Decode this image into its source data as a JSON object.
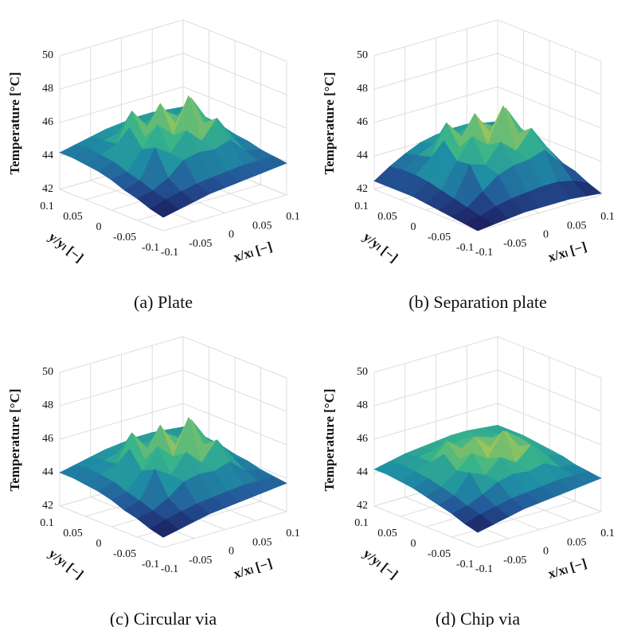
{
  "chart_data": [
    {
      "type": "surface",
      "caption": "(a) Plate",
      "zlabel": "Temperature [°C]",
      "xlabel": "x/xₗ [−]",
      "ylabel": "y/yₗ [−]",
      "x": [
        -0.1,
        -0.075,
        -0.05,
        -0.025,
        0,
        0.025,
        0.05,
        0.075,
        0.1
      ],
      "y": [
        -0.1,
        -0.075,
        -0.05,
        -0.025,
        0,
        0.025,
        0.05,
        0.075,
        0.1
      ],
      "z": [
        [
          42.8,
          43.0,
          43.2,
          43.4,
          43.5,
          43.6,
          43.7,
          43.8,
          43.9
        ],
        [
          43.0,
          43.3,
          43.5,
          43.7,
          43.8,
          43.9,
          44.0,
          44.0,
          44.0
        ],
        [
          43.3,
          43.5,
          44.0,
          44.8,
          45.0,
          44.9,
          45.2,
          44.3,
          44.1
        ],
        [
          43.5,
          43.8,
          45.5,
          44.9,
          46.0,
          45.1,
          46.2,
          44.8,
          44.3
        ],
        [
          43.8,
          44.0,
          45.1,
          46.3,
          45.4,
          47.5,
          45.6,
          45.0,
          44.4
        ],
        [
          44.0,
          44.3,
          46.1,
          45.2,
          47.0,
          45.5,
          46.8,
          45.3,
          44.6
        ],
        [
          44.1,
          44.4,
          44.8,
          46.5,
          45.3,
          46.0,
          45.4,
          44.9,
          44.7
        ],
        [
          44.2,
          44.5,
          44.7,
          44.9,
          45.0,
          45.1,
          45.0,
          44.9,
          44.8
        ],
        [
          44.2,
          44.4,
          44.6,
          44.8,
          44.9,
          45.0,
          45.0,
          44.9,
          44.8
        ]
      ],
      "xlim": [
        -0.1,
        0.1
      ],
      "ylim": [
        -0.1,
        0.1
      ],
      "zlim": [
        42,
        50
      ],
      "xticks": [
        -0.1,
        -0.05,
        0,
        0.05,
        0.1
      ],
      "yticks": [
        -0.1,
        -0.05,
        0,
        0.05,
        0.1
      ],
      "zticks": [
        42,
        44,
        46,
        48,
        50
      ],
      "grid": true,
      "colormap": [
        "#1b1a5c",
        "#24589a",
        "#1f8fa4",
        "#38b48a",
        "#a5c658",
        "#e8b53a"
      ]
    },
    {
      "type": "surface",
      "caption": "(b) Separation plate",
      "zlabel": "Temperature [°C]",
      "xlabel": "x/xₗ [−]",
      "ylabel": "y/yₗ [−]",
      "x": [
        -0.1,
        -0.075,
        -0.05,
        -0.025,
        0,
        0.025,
        0.05,
        0.075,
        0.1
      ],
      "y": [
        -0.1,
        -0.075,
        -0.05,
        -0.025,
        0,
        0.025,
        0.05,
        0.075,
        0.1
      ],
      "z": [
        [
          42.0,
          42.1,
          42.2,
          42.3,
          42.3,
          42.3,
          42.3,
          42.2,
          42.1
        ],
        [
          42.1,
          42.3,
          42.6,
          42.8,
          42.9,
          43.0,
          43.0,
          42.8,
          42.4
        ],
        [
          42.2,
          42.5,
          43.2,
          43.9,
          44.2,
          44.3,
          44.6,
          43.6,
          42.8
        ],
        [
          42.3,
          42.7,
          44.5,
          44.2,
          45.3,
          44.5,
          45.6,
          44.2,
          43.0
        ],
        [
          42.4,
          42.9,
          44.4,
          45.6,
          44.8,
          46.9,
          45.0,
          44.4,
          43.2
        ],
        [
          42.5,
          43.1,
          45.3,
          44.6,
          46.4,
          45.0,
          46.2,
          44.7,
          43.4
        ],
        [
          42.5,
          43.2,
          44.0,
          45.8,
          44.7,
          45.4,
          44.8,
          44.3,
          43.6
        ],
        [
          42.5,
          43.2,
          43.8,
          44.2,
          44.4,
          44.5,
          44.4,
          44.2,
          43.8
        ],
        [
          42.5,
          43.1,
          43.6,
          44.0,
          44.2,
          44.3,
          44.3,
          44.1,
          43.9
        ]
      ],
      "xlim": [
        -0.1,
        0.1
      ],
      "ylim": [
        -0.1,
        0.1
      ],
      "zlim": [
        42,
        50
      ],
      "xticks": [
        -0.1,
        -0.05,
        0,
        0.05,
        0.1
      ],
      "yticks": [
        -0.1,
        -0.05,
        0,
        0.05,
        0.1
      ],
      "zticks": [
        42,
        44,
        46,
        48,
        50
      ],
      "grid": true,
      "colormap": [
        "#1b1a5c",
        "#24589a",
        "#1f8fa4",
        "#38b48a",
        "#a5c658",
        "#e8b53a"
      ]
    },
    {
      "type": "surface",
      "caption": "(c) Circular via",
      "zlabel": "Temperature [°C]",
      "xlabel": "x/xₗ [−]",
      "ylabel": "y/yₗ [−]",
      "x": [
        -0.1,
        -0.075,
        -0.05,
        -0.025,
        0,
        0.025,
        0.05,
        0.075,
        0.1
      ],
      "y": [
        -0.1,
        -0.075,
        -0.05,
        -0.025,
        0,
        0.025,
        0.05,
        0.075,
        0.1
      ],
      "z": [
        [
          42.6,
          42.8,
          43.0,
          43.2,
          43.3,
          43.4,
          43.5,
          43.6,
          43.7
        ],
        [
          42.8,
          43.1,
          43.3,
          43.5,
          43.6,
          43.7,
          43.8,
          43.8,
          43.8
        ],
        [
          43.1,
          43.3,
          43.8,
          44.5,
          44.7,
          44.6,
          44.9,
          44.1,
          43.9
        ],
        [
          43.3,
          43.6,
          45.2,
          44.6,
          45.7,
          44.8,
          45.9,
          44.6,
          44.1
        ],
        [
          43.6,
          43.8,
          44.8,
          46.0,
          45.1,
          47.2,
          45.3,
          44.8,
          44.2
        ],
        [
          43.8,
          44.1,
          45.8,
          44.9,
          46.7,
          45.2,
          46.5,
          45.1,
          44.4
        ],
        [
          43.9,
          44.2,
          44.6,
          46.2,
          45.0,
          45.7,
          45.1,
          44.7,
          44.5
        ],
        [
          44.0,
          44.3,
          44.5,
          44.7,
          44.8,
          44.9,
          44.8,
          44.7,
          44.6
        ],
        [
          44.0,
          44.2,
          44.4,
          44.6,
          44.7,
          44.8,
          44.8,
          44.7,
          44.6
        ]
      ],
      "xlim": [
        -0.1,
        0.1
      ],
      "ylim": [
        -0.1,
        0.1
      ],
      "zlim": [
        42,
        50
      ],
      "xticks": [
        -0.1,
        -0.05,
        0,
        0.05,
        0.1
      ],
      "yticks": [
        -0.1,
        -0.05,
        0,
        0.05,
        0.1
      ],
      "zticks": [
        42,
        44,
        46,
        48,
        50
      ],
      "grid": true,
      "colormap": [
        "#1b1a5c",
        "#24589a",
        "#1f8fa4",
        "#38b48a",
        "#a5c658",
        "#e8b53a"
      ]
    },
    {
      "type": "surface",
      "caption": "(d) Chip via",
      "zlabel": "Temperature [°C]",
      "xlabel": "x/xₗ [−]",
      "ylabel": "y/yₗ [−]",
      "x": [
        -0.1,
        -0.075,
        -0.05,
        -0.025,
        0,
        0.025,
        0.05,
        0.075,
        0.1
      ],
      "y": [
        -0.1,
        -0.075,
        -0.05,
        -0.025,
        0,
        0.025,
        0.05,
        0.075,
        0.1
      ],
      "z": [
        [
          42.9,
          43.1,
          43.3,
          43.5,
          43.6,
          43.7,
          43.8,
          43.9,
          44.0
        ],
        [
          43.1,
          43.4,
          43.6,
          43.8,
          43.9,
          44.0,
          44.1,
          44.1,
          44.1
        ],
        [
          43.4,
          43.6,
          44.0,
          44.5,
          44.7,
          44.6,
          44.8,
          44.3,
          44.2
        ],
        [
          43.6,
          43.9,
          45.0,
          44.6,
          45.4,
          44.8,
          45.6,
          44.7,
          44.4
        ],
        [
          43.8,
          44.1,
          44.8,
          45.6,
          45.0,
          46.4,
          45.2,
          44.9,
          44.5
        ],
        [
          44.0,
          44.3,
          45.5,
          44.9,
          46.0,
          45.1,
          45.8,
          45.1,
          44.6
        ],
        [
          44.1,
          44.4,
          44.7,
          45.7,
          45.0,
          45.4,
          45.1,
          44.9,
          44.7
        ],
        [
          44.2,
          44.5,
          44.7,
          44.8,
          44.9,
          45.0,
          44.9,
          44.8,
          44.7
        ],
        [
          44.2,
          44.4,
          44.6,
          44.7,
          44.8,
          44.9,
          44.9,
          44.8,
          44.7
        ]
      ],
      "xlim": [
        -0.1,
        0.1
      ],
      "ylim": [
        -0.1,
        0.1
      ],
      "zlim": [
        42,
        50
      ],
      "xticks": [
        -0.1,
        -0.05,
        0,
        0.05,
        0.1
      ],
      "yticks": [
        -0.1,
        -0.05,
        0,
        0.05,
        0.1
      ],
      "zticks": [
        42,
        44,
        46,
        48,
        50
      ],
      "grid": true,
      "colormap": [
        "#1b1a5c",
        "#24589a",
        "#1f8fa4",
        "#38b48a",
        "#a5c658",
        "#e8b53a"
      ]
    }
  ]
}
